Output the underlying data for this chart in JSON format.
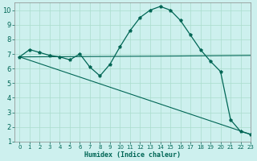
{
  "xlabel": "Humidex (Indice chaleur)",
  "background_color": "#cdf0ee",
  "grid_color": "#aaddcc",
  "line_color": "#006655",
  "xlim": [
    -0.5,
    23
  ],
  "ylim": [
    1,
    10.5
  ],
  "yticks": [
    1,
    2,
    3,
    4,
    5,
    6,
    7,
    8,
    9,
    10
  ],
  "xticks": [
    0,
    1,
    2,
    3,
    4,
    5,
    6,
    7,
    8,
    9,
    10,
    11,
    12,
    13,
    14,
    15,
    16,
    17,
    18,
    19,
    20,
    21,
    22,
    23
  ],
  "line1_x": [
    0,
    1,
    2,
    3,
    4,
    5,
    6,
    7,
    8,
    9,
    10,
    11,
    12,
    13,
    14,
    15,
    16,
    17,
    18,
    19,
    20,
    21,
    22,
    23
  ],
  "line1_y": [
    6.8,
    7.3,
    7.1,
    6.9,
    6.8,
    6.6,
    7.0,
    6.1,
    5.5,
    6.3,
    7.5,
    8.6,
    9.5,
    10.0,
    10.25,
    10.0,
    9.3,
    8.3,
    7.3,
    6.5,
    5.8,
    2.5,
    1.7,
    1.5
  ],
  "line2_x": [
    0,
    14,
    23
  ],
  "line2_y": [
    6.8,
    6.85,
    6.9
  ],
  "line3_x": [
    0,
    23
  ],
  "line3_y": [
    6.8,
    1.5
  ]
}
